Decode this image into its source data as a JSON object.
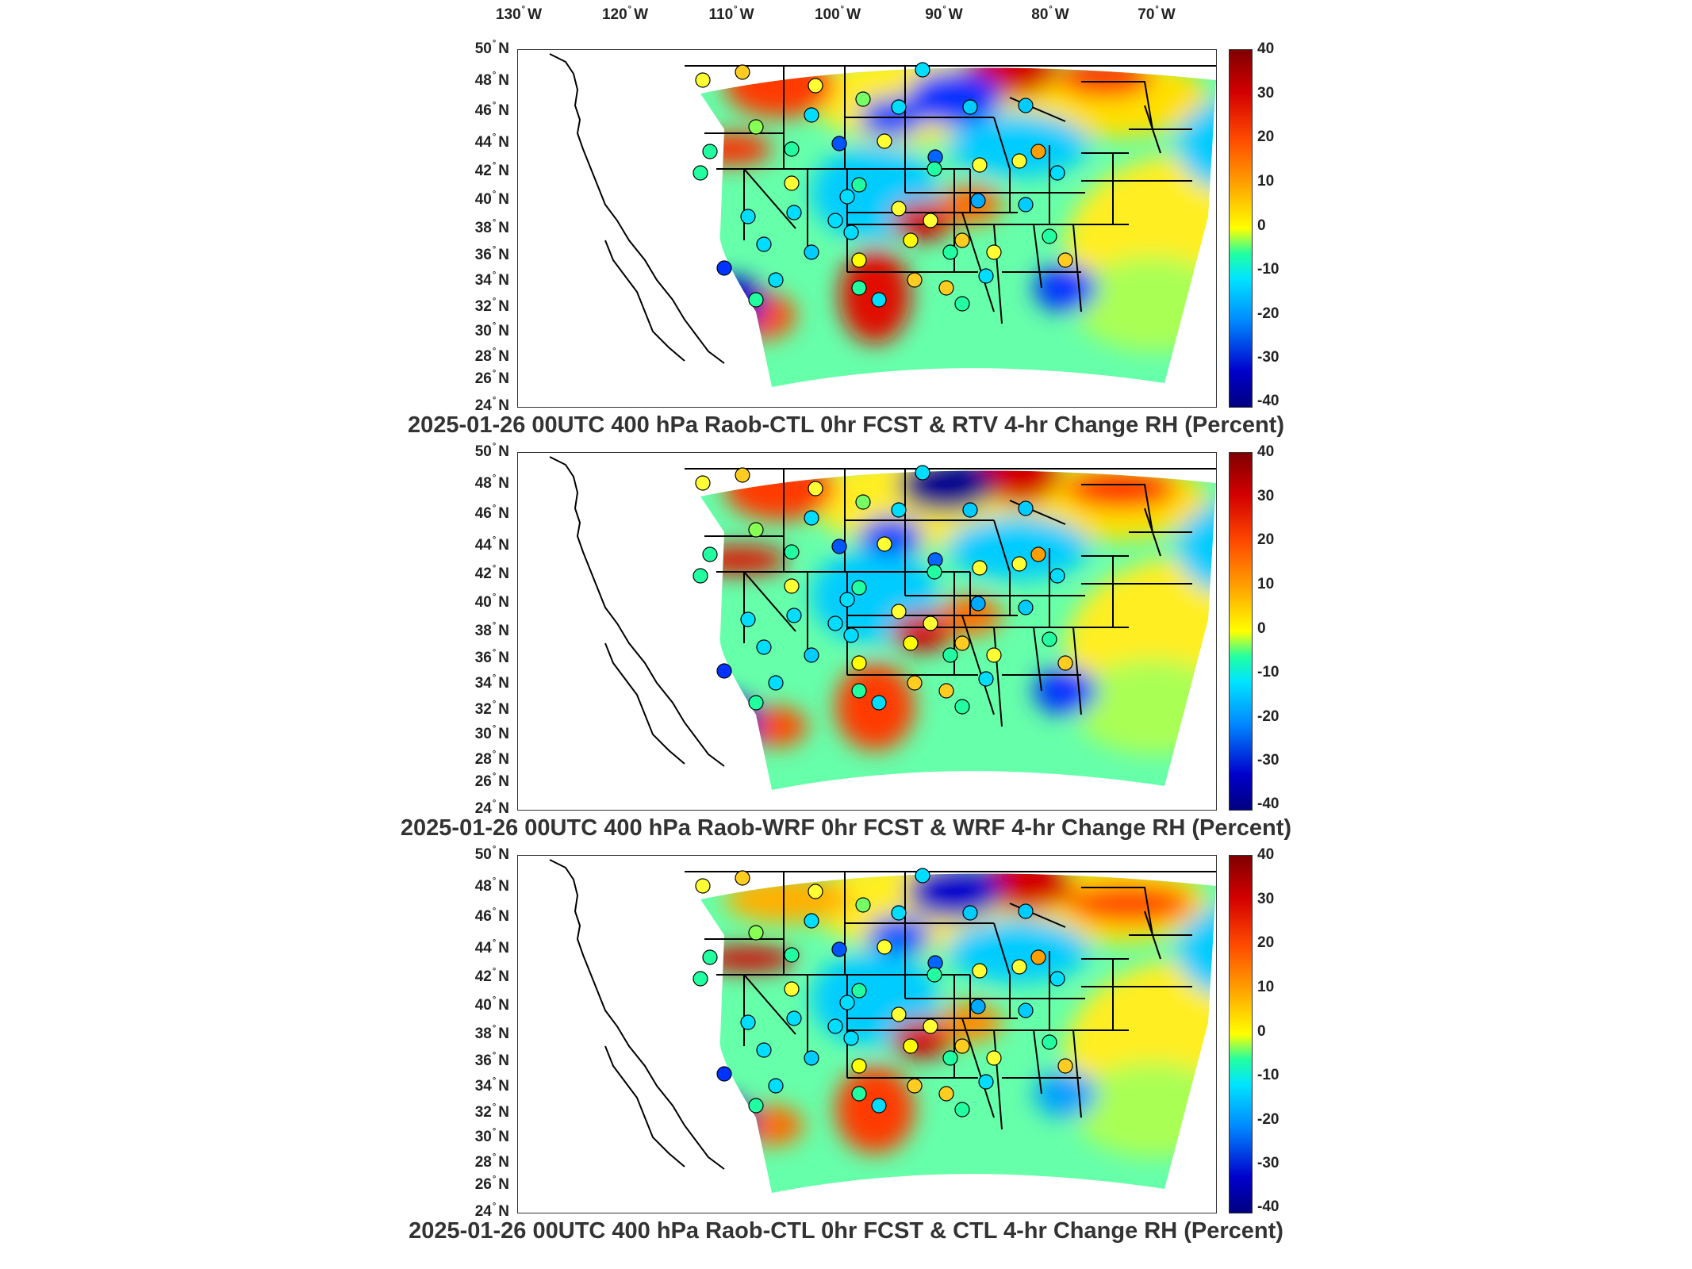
{
  "lon_labels": [
    "130",
    "120",
    "110",
    "100",
    "90",
    "80",
    "70"
  ],
  "lon_suffix": "W",
  "lat_labels": [
    "50",
    "48",
    "46",
    "44",
    "42",
    "40",
    "38",
    "36",
    "34",
    "32",
    "30",
    "28",
    "26",
    "24"
  ],
  "lat_suffix": "N",
  "degree_symbol": "°",
  "colorbar": {
    "ticks": [
      "40",
      "30",
      "20",
      "10",
      "0",
      "-10",
      "-20",
      "-30",
      "-40"
    ],
    "range": [
      -40,
      40
    ],
    "colors": [
      "#00007f",
      "#0000cc",
      "#0088ff",
      "#00e5ff",
      "#22ffa0",
      "#ffff00",
      "#ff9e00",
      "#ff4a00",
      "#d40000",
      "#7f0000"
    ]
  },
  "panels": [
    {
      "title": "2025-01-26 00UTC 400 hPa Raob-CTL 0hr FCST & RTV 4-hr Change RH (Percent)"
    },
    {
      "title": "2025-01-26 00UTC 400 hPa Raob-WRF 0hr FCST & WRF 4-hr Change RH (Percent)"
    },
    {
      "title": "2025-01-26 00UTC 400 hPa Raob-CTL 0hr FCST & CTL 4-hr Change RH (Percent)"
    }
  ]
}
